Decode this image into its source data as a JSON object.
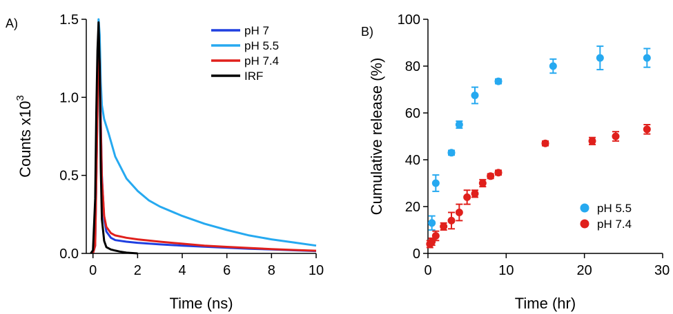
{
  "chart_data": [
    {
      "type": "line",
      "panel_label": "A)",
      "xlabel": "Time (ns)",
      "ylabel_main": "Counts x10",
      "ylabel_exp": "3",
      "xlim": [
        -0.3,
        10
      ],
      "ylim": [
        0,
        1.5
      ],
      "xticks": [
        0,
        2,
        4,
        6,
        8,
        10
      ],
      "xtick_labels": [
        "0",
        "2",
        "4",
        "6",
        "8",
        "10"
      ],
      "yticks": [
        0,
        0.5,
        1.0,
        1.5
      ],
      "ytick_labels": [
        "0.0",
        "0.5",
        "1.0",
        "1.5"
      ],
      "legend": {
        "position": "top-right"
      },
      "series": [
        {
          "name": "pH 7",
          "color": "#1f3fe0",
          "x": [
            0,
            0.1,
            0.2,
            0.25,
            0.3,
            0.35,
            0.4,
            0.5,
            0.6,
            0.8,
            1.0,
            1.5,
            2.0,
            3.0,
            4.0,
            5.0,
            6.0,
            7.0,
            8.0,
            9.0,
            10.0
          ],
          "y": [
            0,
            0.05,
            0.9,
            1.38,
            1.25,
            0.85,
            0.5,
            0.22,
            0.14,
            0.1,
            0.085,
            0.075,
            0.068,
            0.058,
            0.05,
            0.043,
            0.036,
            0.03,
            0.025,
            0.02,
            0.015
          ]
        },
        {
          "name": "pH 5.5",
          "color": "#26a9f0",
          "x": [
            0,
            0.1,
            0.2,
            0.25,
            0.3,
            0.35,
            0.4,
            0.5,
            0.7,
            1.0,
            1.5,
            2.0,
            2.5,
            3.0,
            4.0,
            5.0,
            6.0,
            7.0,
            8.0,
            9.0,
            10.0
          ],
          "y": [
            0,
            0.08,
            0.95,
            1.5,
            1.4,
            1.1,
            0.95,
            0.86,
            0.77,
            0.62,
            0.48,
            0.4,
            0.34,
            0.3,
            0.24,
            0.19,
            0.15,
            0.115,
            0.09,
            0.07,
            0.05
          ]
        },
        {
          "name": "pH 7.4",
          "color": "#e0201c",
          "x": [
            0,
            0.1,
            0.2,
            0.25,
            0.3,
            0.35,
            0.4,
            0.5,
            0.6,
            0.8,
            1.0,
            1.5,
            2.0,
            3.0,
            4.0,
            5.0,
            6.0,
            7.0,
            8.0,
            9.0,
            10.0
          ],
          "y": [
            0,
            0.05,
            0.9,
            1.36,
            1.22,
            0.82,
            0.48,
            0.24,
            0.17,
            0.13,
            0.115,
            0.1,
            0.09,
            0.075,
            0.062,
            0.05,
            0.042,
            0.035,
            0.028,
            0.022,
            0.017
          ]
        },
        {
          "name": "IRF",
          "color": "#000000",
          "x": [
            -0.1,
            0.0,
            0.1,
            0.15,
            0.2,
            0.25,
            0.3,
            0.35,
            0.4,
            0.5,
            0.6,
            0.8,
            1.0,
            1.2,
            1.5,
            2.0
          ],
          "y": [
            0,
            0.02,
            0.35,
            0.9,
            1.3,
            1.48,
            1.2,
            0.55,
            0.22,
            0.08,
            0.04,
            0.025,
            0.018,
            0.012,
            0.005,
            0
          ]
        }
      ]
    },
    {
      "type": "scatter",
      "panel_label": "B)",
      "xlabel": "Time (hr)",
      "ylabel": "Cumulative release (%)",
      "xlim": [
        0,
        30
      ],
      "ylim": [
        0,
        100
      ],
      "xticks": [
        0,
        10,
        20,
        30
      ],
      "xtick_labels": [
        "0",
        "10",
        "20",
        "30"
      ],
      "yticks": [
        0,
        20,
        40,
        60,
        80,
        100
      ],
      "ytick_labels": [
        "0",
        "20",
        "40",
        "60",
        "80",
        "100"
      ],
      "legend": {
        "position": "bottom-right"
      },
      "series": [
        {
          "name": "pH 5.5",
          "color": "#26a9f0",
          "x": [
            0.5,
            1,
            3,
            4,
            6,
            9,
            16,
            22,
            28
          ],
          "y": [
            13,
            30,
            43,
            55,
            67.5,
            73.5,
            80,
            83.5,
            83.5
          ],
          "err": [
            3,
            3.5,
            1,
            1.5,
            3.5,
            1,
            3,
            5,
            4
          ]
        },
        {
          "name": "pH 7.4",
          "color": "#e0201c",
          "x": [
            0.25,
            0.5,
            1,
            2,
            3,
            4,
            5,
            6,
            7,
            8,
            9,
            15,
            21,
            24,
            28
          ],
          "y": [
            4,
            5,
            7.5,
            11.5,
            14,
            17.5,
            24,
            25.5,
            30,
            33,
            34.5,
            47,
            48,
            50,
            53
          ],
          "err": [
            1.5,
            1.5,
            2,
            1.5,
            3.5,
            3.5,
            3,
            1.5,
            1.5,
            1,
            1,
            1,
            1.5,
            2,
            2
          ]
        }
      ]
    }
  ]
}
